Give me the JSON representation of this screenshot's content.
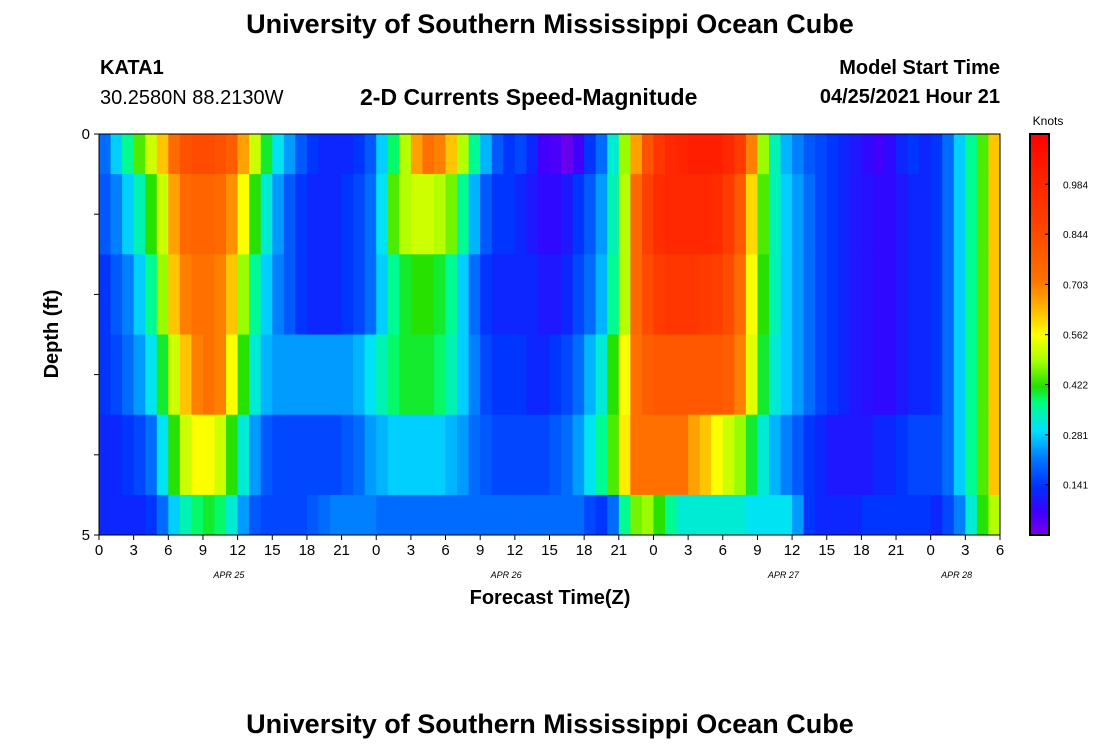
{
  "header": {
    "title": "University of Southern Mississippi Ocean Cube",
    "station_id": "KATA1",
    "station_coords": "30.2580N  88.2130W",
    "plot_title": "2-D Currents Speed-Magnitude",
    "model_start_label": "Model Start Time",
    "model_start_value": "04/25/2021 Hour 21"
  },
  "footer": {
    "title": "University of Southern Mississippi Ocean Cube"
  },
  "chart_data": {
    "type": "heatmap",
    "title": "2-D Currents Speed-Magnitude",
    "xlabel": "Forecast Time(Z)",
    "ylabel": "Depth (ft)",
    "x_tick_labels": [
      "0",
      "3",
      "6",
      "9",
      "12",
      "15",
      "18",
      "21",
      "0",
      "3",
      "6",
      "9",
      "12",
      "15",
      "18",
      "21",
      "0",
      "3",
      "6",
      "9",
      "12",
      "15",
      "18",
      "21",
      "0",
      "3",
      "6"
    ],
    "date_labels": [
      {
        "label": "APR 25",
        "at_tick": 3.75
      },
      {
        "label": "APR 26",
        "at_tick": 11.75
      },
      {
        "label": "APR 27",
        "at_tick": 19.75
      },
      {
        "label": "APR 28",
        "at_tick": 24.75
      }
    ],
    "y_tick_labels": [
      {
        "value": 0,
        "label": "0"
      },
      {
        "value": 5,
        "label": "5"
      }
    ],
    "ylim": [
      0,
      5
    ],
    "x_range_hours": [
      0,
      78
    ],
    "colorbar": {
      "unit": "Knots",
      "min": 0,
      "max": 1.125,
      "tick_values": [
        0.141,
        0.281,
        0.422,
        0.562,
        0.703,
        0.844,
        0.984
      ],
      "tick_labels": [
        "0.141",
        "0.281",
        "0.422",
        "0.562",
        "0.703",
        "0.844",
        "0.984"
      ]
    },
    "grid": false,
    "depth_rows": [
      "0.0-0.5",
      "0.5-1.5",
      "1.5-2.5",
      "2.5-3.5",
      "3.5-4.5",
      "4.5-5.0"
    ],
    "hours": [
      0,
      1,
      2,
      3,
      4,
      5,
      6,
      7,
      8,
      9,
      10,
      11,
      12,
      13,
      14,
      15,
      16,
      17,
      18,
      19,
      20,
      21,
      22,
      23,
      24,
      25,
      26,
      27,
      28,
      29,
      30,
      31,
      32,
      33,
      34,
      35,
      36,
      37,
      38,
      39,
      40,
      41,
      42,
      43,
      44,
      45,
      46,
      47,
      48,
      49,
      50,
      51,
      52,
      53,
      54,
      55,
      56,
      57,
      58,
      59,
      60,
      61,
      62,
      63,
      64,
      65,
      66,
      67,
      68,
      69,
      70,
      71,
      72,
      73,
      74,
      75,
      76,
      77
    ],
    "values": [
      [
        0.2,
        0.28,
        0.36,
        0.44,
        0.52,
        0.62,
        0.74,
        0.82,
        0.84,
        0.84,
        0.82,
        0.78,
        0.66,
        0.52,
        0.4,
        0.3,
        0.24,
        0.18,
        0.14,
        0.12,
        0.12,
        0.12,
        0.14,
        0.18,
        0.28,
        0.38,
        0.5,
        0.66,
        0.72,
        0.7,
        0.62,
        0.5,
        0.36,
        0.26,
        0.18,
        0.14,
        0.16,
        0.12,
        0.06,
        0.05,
        0.02,
        0.06,
        0.14,
        0.2,
        0.32,
        0.48,
        0.66,
        0.82,
        0.92,
        0.98,
        1.0,
        1.02,
        1.02,
        1.02,
        0.98,
        0.9,
        0.7,
        0.48,
        0.34,
        0.26,
        0.22,
        0.18,
        0.16,
        0.14,
        0.12,
        0.1,
        0.08,
        0.06,
        0.08,
        0.12,
        0.14,
        0.12,
        0.14,
        0.2,
        0.28,
        0.36,
        0.44,
        0.62
      ],
      [
        0.18,
        0.22,
        0.28,
        0.34,
        0.42,
        0.52,
        0.66,
        0.74,
        0.76,
        0.76,
        0.74,
        0.68,
        0.56,
        0.42,
        0.32,
        0.24,
        0.18,
        0.14,
        0.12,
        0.12,
        0.12,
        0.14,
        0.16,
        0.2,
        0.3,
        0.44,
        0.5,
        0.52,
        0.52,
        0.5,
        0.46,
        0.36,
        0.26,
        0.18,
        0.14,
        0.14,
        0.12,
        0.1,
        0.08,
        0.08,
        0.1,
        0.14,
        0.18,
        0.24,
        0.34,
        0.5,
        0.74,
        0.88,
        0.96,
        0.98,
        0.98,
        0.98,
        0.98,
        0.96,
        0.9,
        0.8,
        0.6,
        0.44,
        0.34,
        0.28,
        0.24,
        0.2,
        0.16,
        0.14,
        0.12,
        0.1,
        0.09,
        0.08,
        0.08,
        0.1,
        0.12,
        0.12,
        0.14,
        0.2,
        0.28,
        0.36,
        0.44,
        0.62
      ],
      [
        0.14,
        0.18,
        0.22,
        0.28,
        0.36,
        0.48,
        0.62,
        0.7,
        0.72,
        0.72,
        0.7,
        0.62,
        0.48,
        0.36,
        0.28,
        0.22,
        0.18,
        0.14,
        0.12,
        0.12,
        0.12,
        0.14,
        0.16,
        0.2,
        0.28,
        0.36,
        0.4,
        0.42,
        0.42,
        0.4,
        0.36,
        0.28,
        0.2,
        0.14,
        0.12,
        0.12,
        0.12,
        0.12,
        0.1,
        0.1,
        0.12,
        0.16,
        0.2,
        0.26,
        0.36,
        0.5,
        0.74,
        0.84,
        0.9,
        0.92,
        0.92,
        0.92,
        0.9,
        0.88,
        0.84,
        0.74,
        0.56,
        0.42,
        0.34,
        0.28,
        0.24,
        0.2,
        0.16,
        0.14,
        0.12,
        0.1,
        0.09,
        0.08,
        0.08,
        0.1,
        0.12,
        0.12,
        0.14,
        0.2,
        0.28,
        0.36,
        0.44,
        0.62
      ],
      [
        0.14,
        0.16,
        0.2,
        0.24,
        0.3,
        0.4,
        0.52,
        0.62,
        0.7,
        0.72,
        0.7,
        0.56,
        0.42,
        0.32,
        0.26,
        0.24,
        0.24,
        0.24,
        0.24,
        0.24,
        0.24,
        0.24,
        0.26,
        0.3,
        0.34,
        0.38,
        0.4,
        0.4,
        0.4,
        0.38,
        0.34,
        0.28,
        0.22,
        0.16,
        0.14,
        0.14,
        0.14,
        0.12,
        0.12,
        0.14,
        0.16,
        0.2,
        0.26,
        0.32,
        0.42,
        0.56,
        0.72,
        0.78,
        0.8,
        0.8,
        0.8,
        0.8,
        0.8,
        0.8,
        0.78,
        0.7,
        0.54,
        0.4,
        0.32,
        0.28,
        0.24,
        0.2,
        0.16,
        0.14,
        0.12,
        0.1,
        0.09,
        0.08,
        0.08,
        0.1,
        0.12,
        0.12,
        0.14,
        0.2,
        0.28,
        0.36,
        0.44,
        0.62
      ],
      [
        0.12,
        0.12,
        0.14,
        0.16,
        0.2,
        0.3,
        0.42,
        0.52,
        0.56,
        0.56,
        0.52,
        0.42,
        0.32,
        0.24,
        0.18,
        0.16,
        0.16,
        0.16,
        0.16,
        0.16,
        0.16,
        0.18,
        0.2,
        0.24,
        0.26,
        0.28,
        0.28,
        0.28,
        0.28,
        0.28,
        0.26,
        0.24,
        0.2,
        0.18,
        0.16,
        0.16,
        0.16,
        0.16,
        0.16,
        0.18,
        0.2,
        0.24,
        0.3,
        0.36,
        0.44,
        0.58,
        0.72,
        0.72,
        0.72,
        0.72,
        0.72,
        0.66,
        0.62,
        0.56,
        0.52,
        0.48,
        0.4,
        0.32,
        0.26,
        0.22,
        0.18,
        0.14,
        0.12,
        0.1,
        0.1,
        0.1,
        0.1,
        0.12,
        0.12,
        0.14,
        0.16,
        0.16,
        0.16,
        0.2,
        0.28,
        0.36,
        0.44,
        0.62
      ],
      [
        0.12,
        0.12,
        0.12,
        0.12,
        0.14,
        0.2,
        0.28,
        0.34,
        0.38,
        0.4,
        0.38,
        0.32,
        0.24,
        0.18,
        0.16,
        0.16,
        0.16,
        0.16,
        0.18,
        0.2,
        0.22,
        0.22,
        0.22,
        0.22,
        0.2,
        0.2,
        0.2,
        0.2,
        0.2,
        0.2,
        0.2,
        0.2,
        0.2,
        0.2,
        0.2,
        0.2,
        0.2,
        0.2,
        0.2,
        0.2,
        0.2,
        0.2,
        0.16,
        0.14,
        0.2,
        0.36,
        0.46,
        0.48,
        0.42,
        0.36,
        0.32,
        0.32,
        0.32,
        0.32,
        0.32,
        0.32,
        0.3,
        0.3,
        0.3,
        0.3,
        0.24,
        0.14,
        0.12,
        0.12,
        0.12,
        0.12,
        0.14,
        0.14,
        0.14,
        0.14,
        0.14,
        0.14,
        0.12,
        0.16,
        0.22,
        0.32,
        0.42,
        0.5
      ]
    ]
  }
}
